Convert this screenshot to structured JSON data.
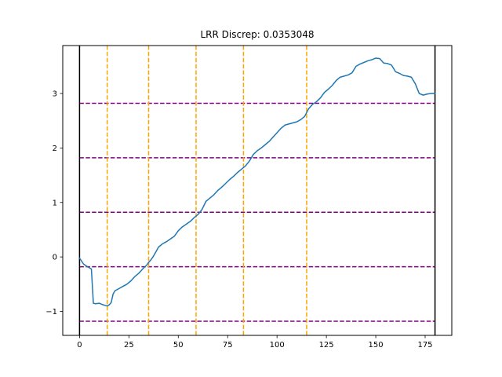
{
  "chart_data": {
    "type": "line",
    "title": "LRR Discrep: 0.0353048",
    "xlabel": "",
    "ylabel": "",
    "xlim": [
      -8.5,
      188.5
    ],
    "ylim": [
      -1.44,
      3.88
    ],
    "xticks": [
      0,
      25,
      50,
      75,
      100,
      125,
      150,
      175
    ],
    "yticks": [
      -1,
      0,
      1,
      2,
      3
    ],
    "ytick_labels": [
      "−1",
      "0",
      "1",
      "2",
      "3"
    ],
    "grid": false,
    "series": [
      {
        "color": "#1f77b4",
        "x": [
          0,
          2,
          4,
          6,
          7,
          8,
          10,
          12,
          14,
          15,
          16,
          17,
          18,
          20,
          22,
          24,
          26,
          28,
          30,
          32,
          34,
          35,
          36,
          37,
          38,
          40,
          42,
          44,
          46,
          48,
          50,
          52,
          54,
          56,
          58,
          60,
          62,
          64,
          66,
          68,
          70,
          72,
          74,
          76,
          78,
          80,
          82,
          84,
          86,
          88,
          90,
          92,
          94,
          96,
          98,
          100,
          102,
          104,
          106,
          108,
          110,
          112,
          114,
          116,
          118,
          120,
          122,
          124,
          126,
          128,
          130,
          132,
          134,
          136,
          138,
          140,
          142,
          144,
          146,
          148,
          150,
          152,
          154,
          156,
          158,
          160,
          162,
          164,
          166,
          168,
          170,
          172,
          174,
          176,
          178,
          180
        ],
        "y": [
          -0.02,
          -0.13,
          -0.18,
          -0.22,
          -0.85,
          -0.86,
          -0.85,
          -0.88,
          -0.9,
          -0.88,
          -0.84,
          -0.68,
          -0.62,
          -0.58,
          -0.54,
          -0.5,
          -0.44,
          -0.36,
          -0.3,
          -0.22,
          -0.15,
          -0.1,
          -0.06,
          -0.01,
          0.05,
          0.18,
          0.24,
          0.28,
          0.33,
          0.38,
          0.48,
          0.55,
          0.6,
          0.65,
          0.72,
          0.78,
          0.87,
          1.02,
          1.08,
          1.14,
          1.22,
          1.28,
          1.35,
          1.42,
          1.48,
          1.55,
          1.61,
          1.67,
          1.76,
          1.88,
          1.95,
          2.0,
          2.06,
          2.12,
          2.2,
          2.28,
          2.36,
          2.42,
          2.44,
          2.46,
          2.48,
          2.52,
          2.58,
          2.72,
          2.8,
          2.85,
          2.92,
          3.02,
          3.08,
          3.15,
          3.24,
          3.3,
          3.32,
          3.34,
          3.38,
          3.5,
          3.54,
          3.57,
          3.6,
          3.62,
          3.65,
          3.64,
          3.56,
          3.55,
          3.52,
          3.4,
          3.37,
          3.33,
          3.32,
          3.3,
          3.18,
          3.0,
          2.97,
          2.99,
          3.0,
          3.0
        ]
      }
    ],
    "vertical_lines": {
      "black": [
        0,
        180
      ],
      "orange_dashed": [
        14,
        35,
        59,
        83,
        115
      ]
    },
    "horizontal_lines_purple_dashed": [
      -1.18,
      -0.18,
      0.82,
      1.82,
      2.82
    ]
  }
}
